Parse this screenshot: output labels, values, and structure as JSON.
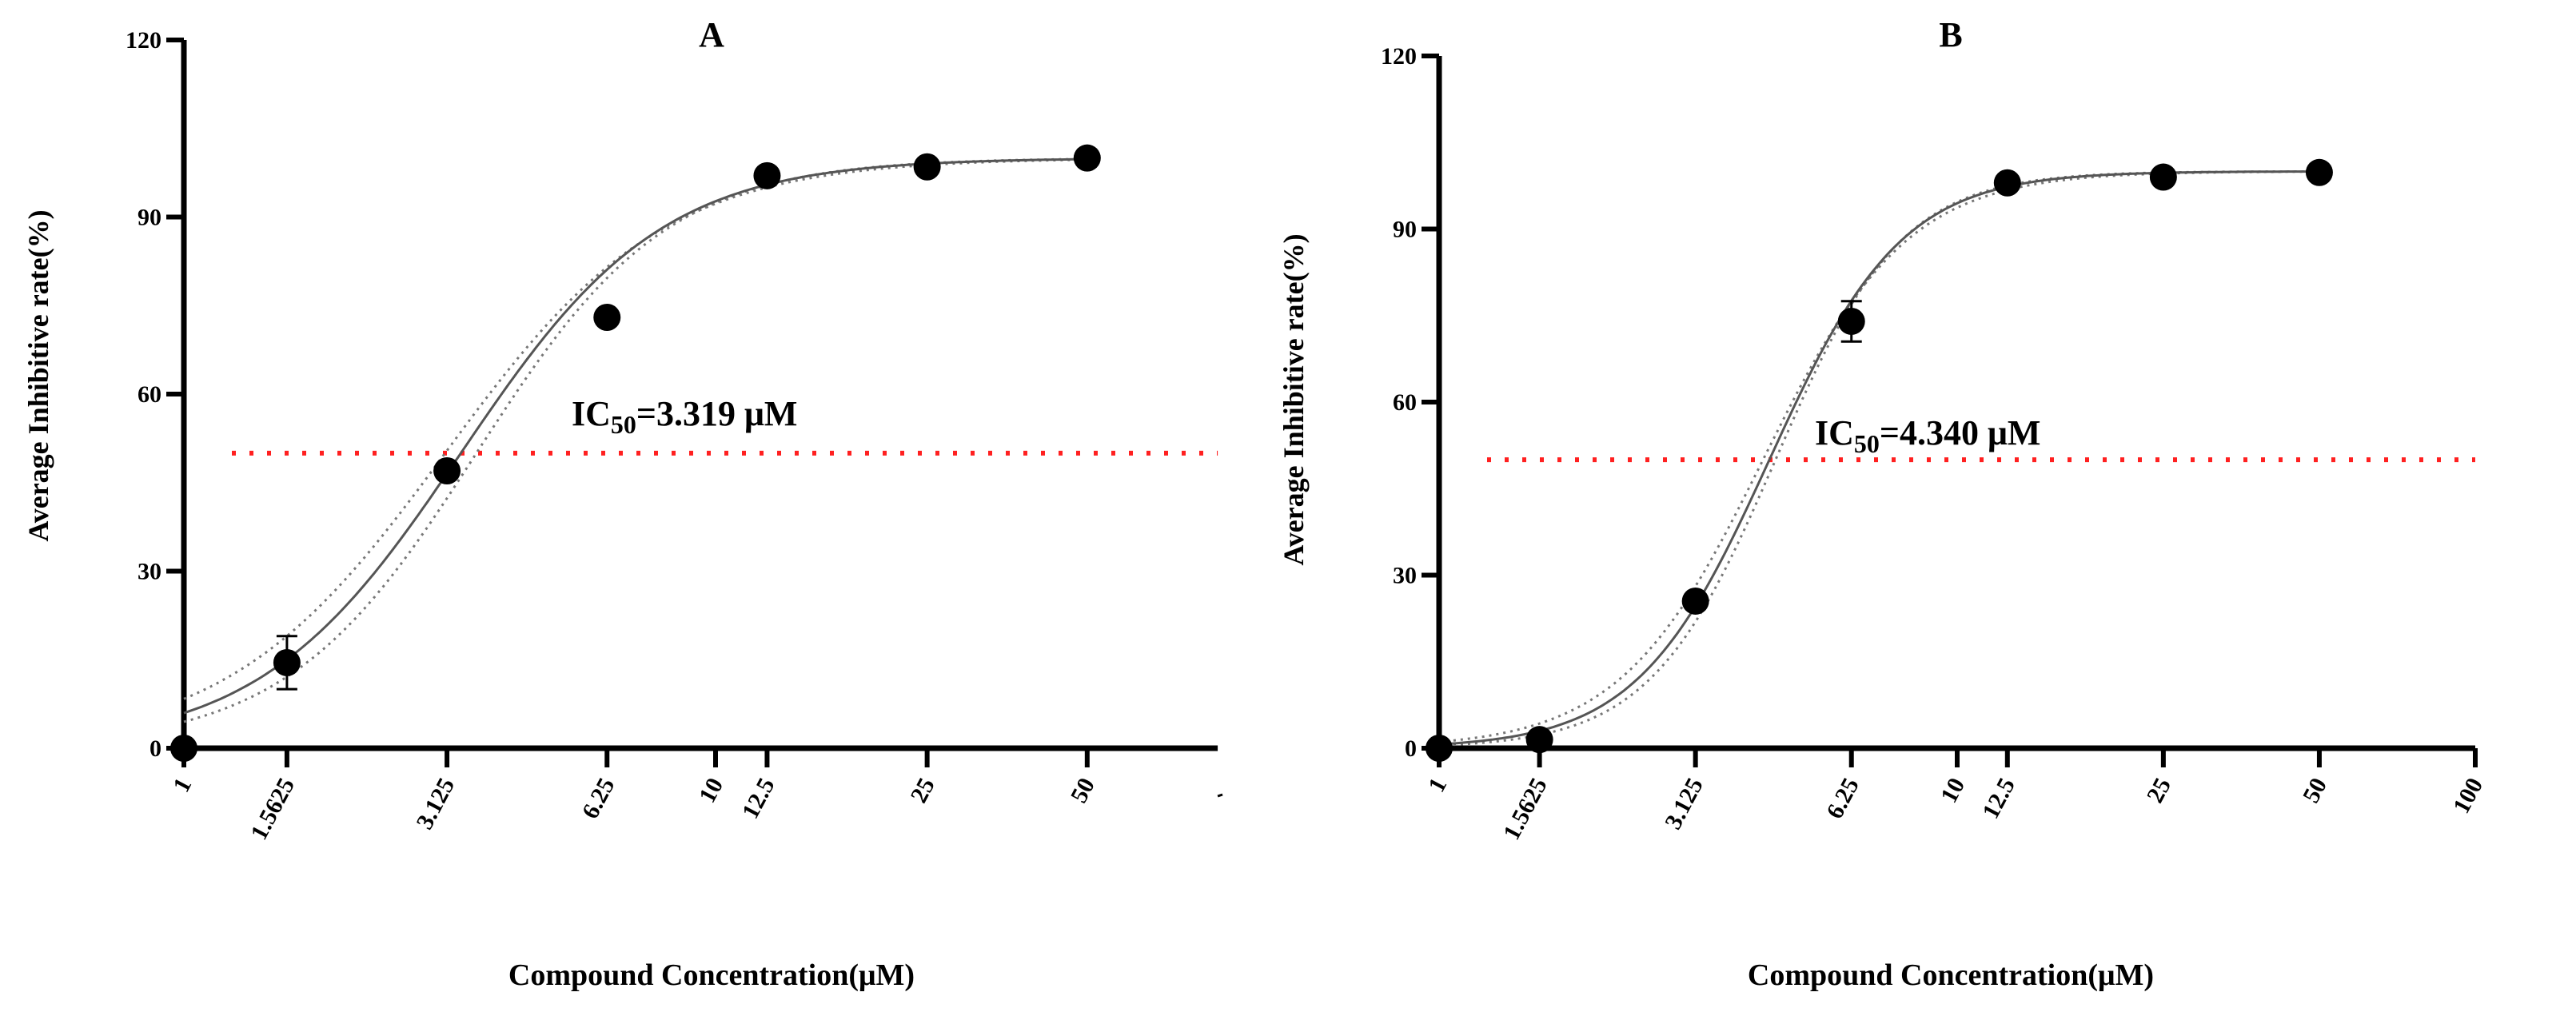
{
  "chart_data": [
    {
      "type": "scatter",
      "panel": "A",
      "title": "A",
      "xlabel": "Compound Concentration(μM)",
      "ylabel": "Average Inhibitive rate(%)",
      "x_scale": "log",
      "xlim": [
        1,
        88
      ],
      "ylim": [
        0,
        120
      ],
      "x_ticks": [
        1,
        1.5625,
        3.125,
        6.25,
        10,
        12.5,
        25,
        50
      ],
      "x_tick_labels": [
        "1",
        "1.5625",
        "3.125",
        "6.25",
        "10",
        "12.5",
        "25",
        "50"
      ],
      "y_ticks": [
        0,
        30,
        60,
        90,
        120
      ],
      "y_tick_labels": [
        "0",
        "30",
        "60",
        "90",
        "120"
      ],
      "grid": false,
      "x": [
        1,
        1.5625,
        3.125,
        6.25,
        12.5,
        25,
        50
      ],
      "y": [
        0,
        14.5,
        47,
        73,
        97,
        98.5,
        100
      ],
      "y_error": [
        0,
        4.5,
        0,
        0,
        0,
        0,
        0
      ],
      "fit": {
        "model": "sigmoidal dose-response",
        "ic50": 3.319,
        "hill_slope": 2.3,
        "bottom": 0,
        "top": 100
      },
      "confidence_band": {
        "ic50_low": 3.1,
        "ic50_high": 3.55,
        "style": "dotted"
      },
      "reference_line": {
        "y": 50,
        "color": "#ff2020",
        "style": "dotted"
      },
      "annotation": {
        "prefix": "IC",
        "subscript": "50",
        "suffix": "=3.319 μM"
      },
      "marker_color": "#000000",
      "fit_color": "#555555"
    },
    {
      "type": "scatter",
      "panel": "B",
      "title": "B",
      "xlabel": "Compound Concentration(μM)",
      "ylabel": "Average Inhibitive rate(%)",
      "x_scale": "log",
      "xlim": [
        1,
        100
      ],
      "ylim": [
        0,
        120
      ],
      "x_ticks": [
        1,
        1.5625,
        3.125,
        6.25,
        10,
        12.5,
        25,
        50,
        100
      ],
      "x_tick_labels": [
        "1",
        "1.5625",
        "3.125",
        "6.25",
        "10",
        "12.5",
        "25",
        "50",
        "100"
      ],
      "y_ticks": [
        0,
        30,
        60,
        90,
        120
      ],
      "y_tick_labels": [
        "0",
        "30",
        "60",
        "90",
        "120"
      ],
      "grid": false,
      "x": [
        1,
        1.5625,
        3.125,
        6.25,
        12.5,
        25,
        50
      ],
      "y": [
        0,
        1.5,
        25.5,
        74,
        98,
        99,
        99.8
      ],
      "y_error": [
        0,
        0,
        0,
        3.5,
        0,
        0,
        0
      ],
      "fit": {
        "model": "sigmoidal dose-response",
        "ic50": 4.34,
        "hill_slope": 3.4,
        "bottom": 0,
        "top": 100
      },
      "confidence_band": {
        "ic50_low": 4.22,
        "ic50_high": 4.46,
        "style": "dotted"
      },
      "reference_line": {
        "y": 50,
        "color": "#ff2020",
        "style": "dotted"
      },
      "annotation": {
        "prefix": "IC",
        "subscript": "50",
        "suffix": "=4.340 μM"
      },
      "marker_color": "#000000",
      "fit_color": "#555555"
    }
  ]
}
